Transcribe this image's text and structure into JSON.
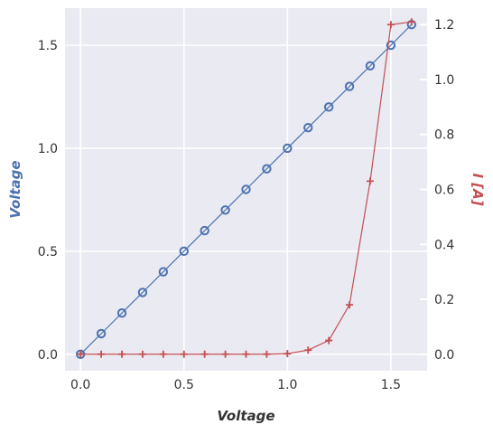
{
  "chart_data": {
    "type": "line",
    "x": [
      0.0,
      0.1,
      0.2,
      0.3,
      0.4,
      0.5,
      0.6,
      0.7,
      0.8,
      0.9,
      1.0,
      1.1,
      1.2,
      1.3,
      1.4,
      1.5,
      1.6
    ],
    "series": [
      {
        "axis": "left",
        "color": "#4c72b0",
        "marker": "circle",
        "values": [
          0.0,
          0.1,
          0.2,
          0.3,
          0.4,
          0.5,
          0.6,
          0.7,
          0.8,
          0.9,
          1.0,
          1.1,
          1.2,
          1.3,
          1.4,
          1.5,
          1.6
        ]
      },
      {
        "axis": "right",
        "color": "#c44e52",
        "marker": "plus",
        "values": [
          0.0,
          0.0,
          0.0,
          0.0,
          0.0,
          0.0,
          0.0,
          0.0,
          0.0,
          0.0,
          0.002,
          0.015,
          0.05,
          0.18,
          0.63,
          1.2,
          1.21
        ]
      }
    ],
    "xlabel": "Voltage",
    "ylabel_left": "Voltage",
    "ylabel_right": "I [A]",
    "xlim": [
      -0.075,
      1.675
    ],
    "ylim_left": [
      -0.08,
      1.68
    ],
    "ylim_right": [
      -0.06,
      1.26
    ],
    "xticks": [
      0.0,
      0.5,
      1.0,
      1.5
    ],
    "xtick_labels": [
      "0.0",
      "0.5",
      "1.0",
      "1.5"
    ],
    "yticks_left": [
      0.0,
      0.5,
      1.0,
      1.5
    ],
    "ytick_labels_left": [
      "0.0",
      "0.5",
      "1.0",
      "1.5"
    ],
    "yticks_right": [
      0.0,
      0.2,
      0.4,
      0.6,
      0.8,
      1.0,
      1.2
    ],
    "ytick_labels_right": [
      "0.0",
      "0.2",
      "0.4",
      "0.6",
      "0.8",
      "1.0",
      "1.2"
    ],
    "grid": true,
    "style": {
      "plot_bg": "#eaeaf2",
      "grid_color": "#ffffff",
      "tick_label_color": "#333333",
      "xlabel_color": "#333333",
      "ylabel_left_color": "#4c72b0",
      "ylabel_right_color": "#c44e52"
    }
  }
}
